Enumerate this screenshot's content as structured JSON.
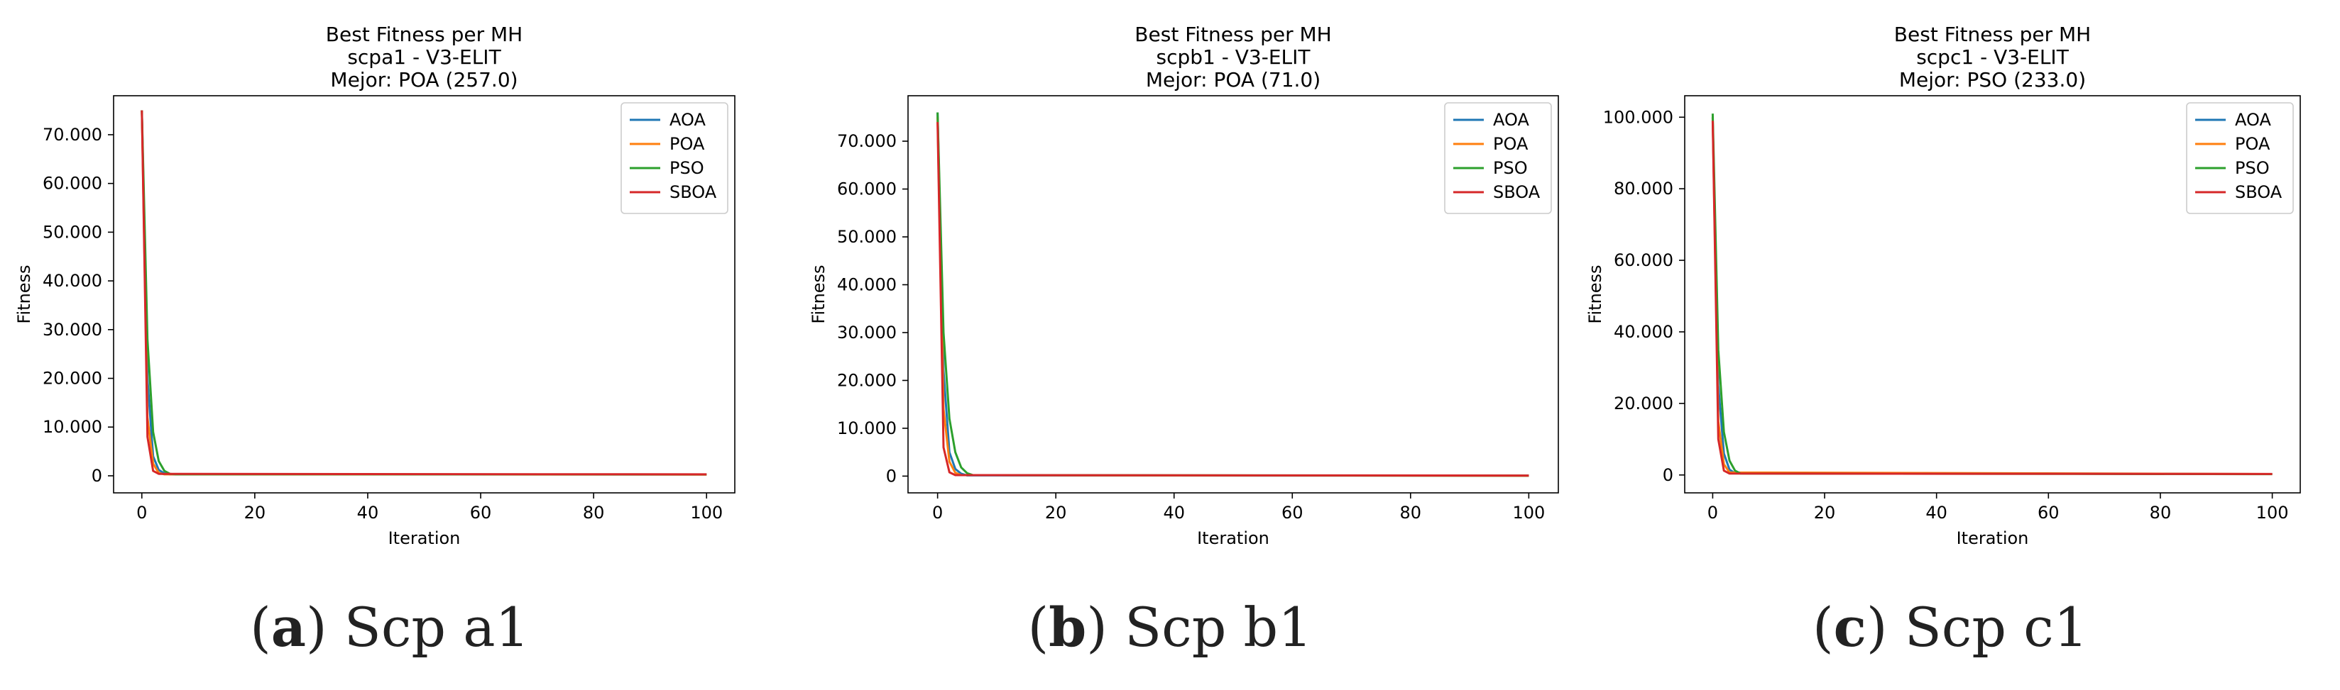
{
  "chart_data": [
    {
      "type": "line",
      "title": "Best Fitness per MH",
      "subtitle": "scpa1 - V3-ELIT",
      "best": "Mejor: POA (257.0)",
      "xlabel": "Iteration",
      "ylabel": "Fitness",
      "xlim": [
        -5,
        105
      ],
      "ylim": [
        -3500,
        78000
      ],
      "x_ticks": [
        0,
        20,
        40,
        60,
        80,
        100
      ],
      "x_tick_labels": [
        "0",
        "20",
        "40",
        "60",
        "80",
        "100"
      ],
      "y_ticks": [
        0,
        10000,
        20000,
        30000,
        40000,
        50000,
        60000,
        70000
      ],
      "y_tick_labels": [
        "0",
        "10.000",
        "20.000",
        "30.000",
        "40.000",
        "50.000",
        "60.000",
        "70.000"
      ],
      "legend": "top-right",
      "series": [
        {
          "name": "AOA",
          "color": "#1f77b4",
          "points": [
            [
              0,
              75000
            ],
            [
              1,
              20000
            ],
            [
              2,
              4000
            ],
            [
              3,
              1200
            ],
            [
              4,
              500
            ],
            [
              5,
              300
            ],
            [
              100,
              270
            ]
          ]
        },
        {
          "name": "POA",
          "color": "#ff7f0e",
          "points": [
            [
              0,
              75000
            ],
            [
              1,
              12000
            ],
            [
              2,
              2500
            ],
            [
              3,
              600
            ],
            [
              4,
              300
            ],
            [
              100,
              257
            ]
          ]
        },
        {
          "name": "PSO",
          "color": "#2ca02c",
          "points": [
            [
              0,
              75000
            ],
            [
              1,
              28000
            ],
            [
              2,
              9000
            ],
            [
              3,
              3000
            ],
            [
              4,
              1000
            ],
            [
              5,
              400
            ],
            [
              6,
              300
            ],
            [
              100,
              280
            ]
          ]
        },
        {
          "name": "SBOA",
          "color": "#d62728",
          "points": [
            [
              0,
              75000
            ],
            [
              1,
              8000
            ],
            [
              2,
              1000
            ],
            [
              3,
              400
            ],
            [
              100,
              300
            ]
          ]
        }
      ],
      "caption_letter": "a",
      "caption_text": "Scp a1"
    },
    {
      "type": "line",
      "title": "Best Fitness per MH",
      "subtitle": "scpb1 - V3-ELIT",
      "best": "Mejor: POA (71.0)",
      "xlabel": "Iteration",
      "ylabel": "Fitness",
      "xlim": [
        -5,
        105
      ],
      "ylim": [
        -3500,
        79500
      ],
      "x_ticks": [
        0,
        20,
        40,
        60,
        80,
        100
      ],
      "x_tick_labels": [
        "0",
        "20",
        "40",
        "60",
        "80",
        "100"
      ],
      "y_ticks": [
        0,
        10000,
        20000,
        30000,
        40000,
        50000,
        60000,
        70000
      ],
      "y_tick_labels": [
        "0",
        "10.000",
        "20.000",
        "30.000",
        "40.000",
        "50.000",
        "60.000",
        "70.000"
      ],
      "legend": "top-right",
      "series": [
        {
          "name": "AOA",
          "color": "#1f77b4",
          "points": [
            [
              0,
              76000
            ],
            [
              1,
              22000
            ],
            [
              2,
              5000
            ],
            [
              3,
              1500
            ],
            [
              4,
              500
            ],
            [
              5,
              150
            ],
            [
              100,
              90
            ]
          ]
        },
        {
          "name": "POA",
          "color": "#ff7f0e",
          "points": [
            [
              0,
              75000
            ],
            [
              1,
              14000
            ],
            [
              2,
              3000
            ],
            [
              3,
              700
            ],
            [
              4,
              200
            ],
            [
              100,
              71
            ]
          ]
        },
        {
          "name": "PSO",
          "color": "#2ca02c",
          "points": [
            [
              0,
              76000
            ],
            [
              1,
              30000
            ],
            [
              2,
              12000
            ],
            [
              3,
              5000
            ],
            [
              4,
              1800
            ],
            [
              5,
              600
            ],
            [
              6,
              200
            ],
            [
              100,
              100
            ]
          ]
        },
        {
          "name": "SBOA",
          "color": "#d62728",
          "points": [
            [
              0,
              74000
            ],
            [
              1,
              6000
            ],
            [
              2,
              800
            ],
            [
              3,
              200
            ],
            [
              100,
              110
            ]
          ]
        }
      ],
      "caption_letter": "b",
      "caption_text": "Scp b1"
    },
    {
      "type": "line",
      "title": "Best Fitness per MH",
      "subtitle": "scpc1 - V3-ELIT",
      "best": "Mejor: PSO (233.0)",
      "xlabel": "Iteration",
      "ylabel": "Fitness",
      "xlim": [
        -5,
        105
      ],
      "ylim": [
        -5000,
        106000
      ],
      "x_ticks": [
        0,
        20,
        40,
        60,
        80,
        100
      ],
      "x_tick_labels": [
        "0",
        "20",
        "40",
        "60",
        "80",
        "100"
      ],
      "y_ticks": [
        0,
        20000,
        40000,
        60000,
        80000,
        100000
      ],
      "y_tick_labels": [
        "0",
        "20.000",
        "40.000",
        "60.000",
        "80.000",
        "100.000"
      ],
      "legend": "top-right",
      "series": [
        {
          "name": "AOA",
          "color": "#1f77b4",
          "points": [
            [
              0,
              100000
            ],
            [
              1,
              25000
            ],
            [
              2,
              6000
            ],
            [
              3,
              1500
            ],
            [
              4,
              500
            ],
            [
              100,
              260
            ]
          ]
        },
        {
          "name": "POA",
          "color": "#ff7f0e",
          "points": [
            [
              0,
              100000
            ],
            [
              1,
              15000
            ],
            [
              2,
              3000
            ],
            [
              3,
              700
            ],
            [
              100,
              250
            ]
          ]
        },
        {
          "name": "PSO",
          "color": "#2ca02c",
          "points": [
            [
              0,
              101000
            ],
            [
              1,
              35000
            ],
            [
              2,
              12000
            ],
            [
              3,
              4000
            ],
            [
              4,
              1200
            ],
            [
              5,
              400
            ],
            [
              100,
              233
            ]
          ]
        },
        {
          "name": "SBOA",
          "color": "#d62728",
          "points": [
            [
              0,
              99000
            ],
            [
              1,
              10000
            ],
            [
              2,
              1200
            ],
            [
              3,
              400
            ],
            [
              100,
              280
            ]
          ]
        }
      ],
      "caption_letter": "c",
      "caption_text": "Scp c1"
    }
  ]
}
